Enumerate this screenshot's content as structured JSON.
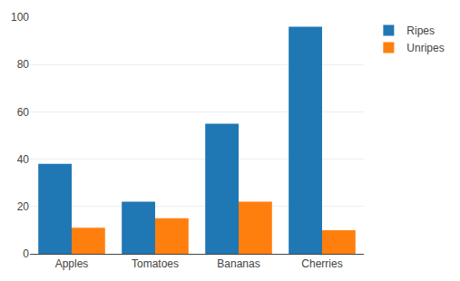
{
  "chart_data": {
    "type": "bar",
    "categories": [
      "Apples",
      "Tomatoes",
      "Bananas",
      "Cherries"
    ],
    "series": [
      {
        "name": "Ripes",
        "color": "#1f77b4",
        "values": [
          38,
          22,
          55,
          96
        ]
      },
      {
        "name": "Unripes",
        "color": "#ff7f0e",
        "values": [
          11,
          15,
          22,
          10
        ]
      }
    ],
    "ylim": [
      0,
      100
    ],
    "yticks": [
      0,
      20,
      40,
      60,
      80,
      100
    ],
    "grid": true,
    "legend": "top right"
  }
}
